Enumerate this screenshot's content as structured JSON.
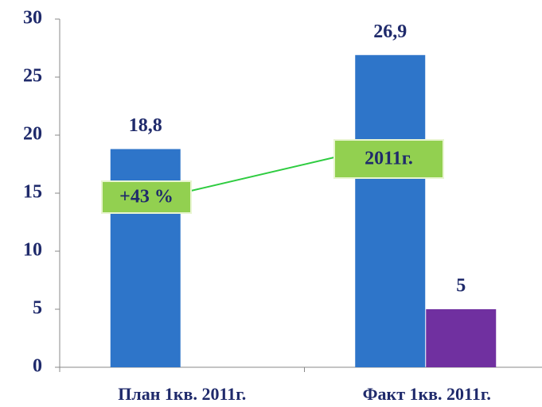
{
  "chart_data": {
    "type": "bar",
    "categories": [
      "План 1кв. 2011г.",
      "Факт 1кв. 2011г."
    ],
    "series": [
      {
        "color": "#2e75c9",
        "values": [
          18.8,
          26.9
        ],
        "value_labels": [
          "18,8",
          "26,9"
        ]
      },
      {
        "color": "#7030a0",
        "values": [
          null,
          5
        ],
        "value_labels": [
          null,
          "5"
        ]
      }
    ],
    "ylim": [
      0,
      30
    ],
    "yticks": [
      0,
      5,
      10,
      15,
      20,
      25,
      30
    ],
    "annotations": [
      "+43 %",
      "2011г."
    ],
    "annotation_color": "#92d050"
  }
}
